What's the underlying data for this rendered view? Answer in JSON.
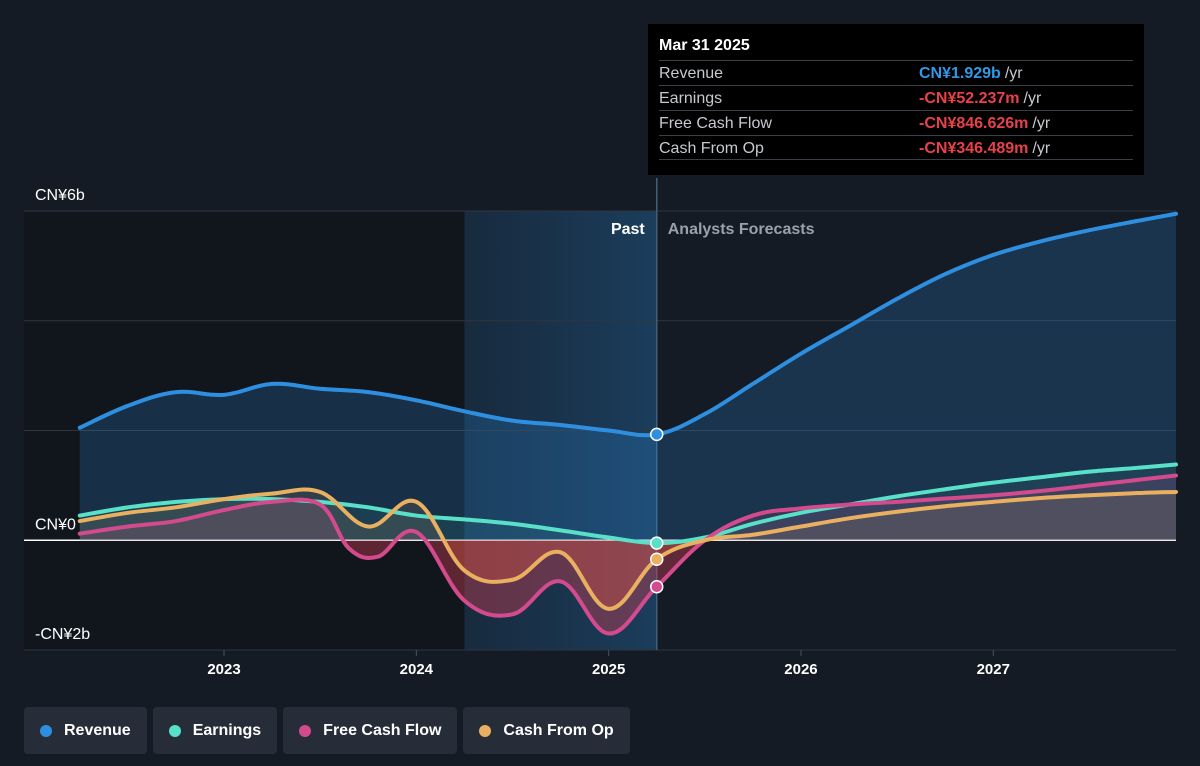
{
  "tooltip": {
    "date": "Mar 31 2025",
    "rows": [
      {
        "label": "Revenue",
        "value": "CN¥1.929b",
        "unit": "/yr",
        "color": "#2e9ae6"
      },
      {
        "label": "Earnings",
        "value": "-CN¥52.237m",
        "unit": "/yr",
        "color": "#e8414a"
      },
      {
        "label": "Free Cash Flow",
        "value": "-CN¥846.626m",
        "unit": "/yr",
        "color": "#e8414a"
      },
      {
        "label": "Cash From Op",
        "value": "-CN¥346.489m",
        "unit": "/yr",
        "color": "#e8414a"
      }
    ]
  },
  "legend": [
    {
      "label": "Revenue",
      "color": "#2e8fe0"
    },
    {
      "label": "Earnings",
      "color": "#59e0c8"
    },
    {
      "label": "Free Cash Flow",
      "color": "#d34b8d"
    },
    {
      "label": "Cash From Op",
      "color": "#e8b060"
    }
  ],
  "chart_data": {
    "type": "line",
    "y_tick_labels": [
      "CN¥6b",
      "CN¥0",
      "-CN¥2b"
    ],
    "ylim": [
      -2,
      6
    ],
    "x_tick_labels": [
      "2023",
      "2024",
      "2025",
      "2026",
      "2027"
    ],
    "x_ticks": [
      2023,
      2024,
      2025,
      2026,
      2027
    ],
    "xlim": [
      2021.96,
      2027.95
    ],
    "past_label": "Past",
    "forecast_label": "Analysts Forecasts",
    "past_region_start": 2024.25,
    "current_date": 2025.25,
    "series": [
      {
        "name": "Revenue",
        "color": "#2e8fe0",
        "x": [
          2022.25,
          2022.5,
          2022.75,
          2023.0,
          2023.25,
          2023.5,
          2023.75,
          2024.0,
          2024.25,
          2024.5,
          2024.75,
          2025.0,
          2025.25,
          2025.5,
          2025.75,
          2026.0,
          2026.25,
          2026.5,
          2026.75,
          2027.0,
          2027.25,
          2027.5,
          2027.75,
          2027.95
        ],
        "y": [
          2.05,
          2.45,
          2.7,
          2.65,
          2.85,
          2.76,
          2.7,
          2.55,
          2.35,
          2.18,
          2.1,
          2.0,
          1.929,
          2.3,
          2.85,
          3.4,
          3.9,
          4.4,
          4.85,
          5.2,
          5.45,
          5.65,
          5.82,
          5.95
        ]
      },
      {
        "name": "Earnings",
        "color": "#59e0c8",
        "x": [
          2022.25,
          2022.5,
          2022.75,
          2023.0,
          2023.25,
          2023.5,
          2023.75,
          2024.0,
          2024.25,
          2024.5,
          2024.75,
          2025.0,
          2025.25,
          2025.5,
          2025.75,
          2026.0,
          2026.25,
          2026.5,
          2026.75,
          2027.0,
          2027.25,
          2027.5,
          2027.75,
          2027.95
        ],
        "y": [
          0.45,
          0.6,
          0.7,
          0.75,
          0.75,
          0.7,
          0.6,
          0.45,
          0.38,
          0.3,
          0.18,
          0.05,
          -0.052,
          0.05,
          0.3,
          0.5,
          0.65,
          0.8,
          0.93,
          1.05,
          1.15,
          1.25,
          1.32,
          1.38
        ]
      },
      {
        "name": "Free Cash Flow",
        "color": "#d34b8d",
        "x": [
          2022.25,
          2022.5,
          2022.75,
          2023.0,
          2023.25,
          2023.5,
          2023.65,
          2023.8,
          2024.0,
          2024.25,
          2024.5,
          2024.75,
          2025.0,
          2025.25,
          2025.5,
          2025.75,
          2026.0,
          2026.25,
          2026.5,
          2026.75,
          2027.0,
          2027.25,
          2027.5,
          2027.75,
          2027.95
        ],
        "y": [
          0.12,
          0.25,
          0.35,
          0.55,
          0.7,
          0.65,
          -0.15,
          -0.3,
          0.15,
          -1.1,
          -1.35,
          -0.75,
          -1.7,
          -0.847,
          0.0,
          0.45,
          0.58,
          0.65,
          0.7,
          0.76,
          0.82,
          0.9,
          1.0,
          1.1,
          1.18
        ]
      },
      {
        "name": "Cash From Op",
        "color": "#e8b060",
        "x": [
          2022.25,
          2022.5,
          2022.75,
          2023.0,
          2023.25,
          2023.5,
          2023.75,
          2024.0,
          2024.25,
          2024.5,
          2024.75,
          2025.0,
          2025.25,
          2025.5,
          2025.75,
          2026.0,
          2026.25,
          2026.5,
          2026.75,
          2027.0,
          2027.25,
          2027.5,
          2027.75,
          2027.95
        ],
        "y": [
          0.35,
          0.5,
          0.6,
          0.75,
          0.85,
          0.88,
          0.25,
          0.7,
          -0.55,
          -0.72,
          -0.22,
          -1.25,
          -0.346,
          0.0,
          0.1,
          0.25,
          0.4,
          0.52,
          0.62,
          0.7,
          0.77,
          0.82,
          0.86,
          0.88
        ]
      }
    ]
  }
}
